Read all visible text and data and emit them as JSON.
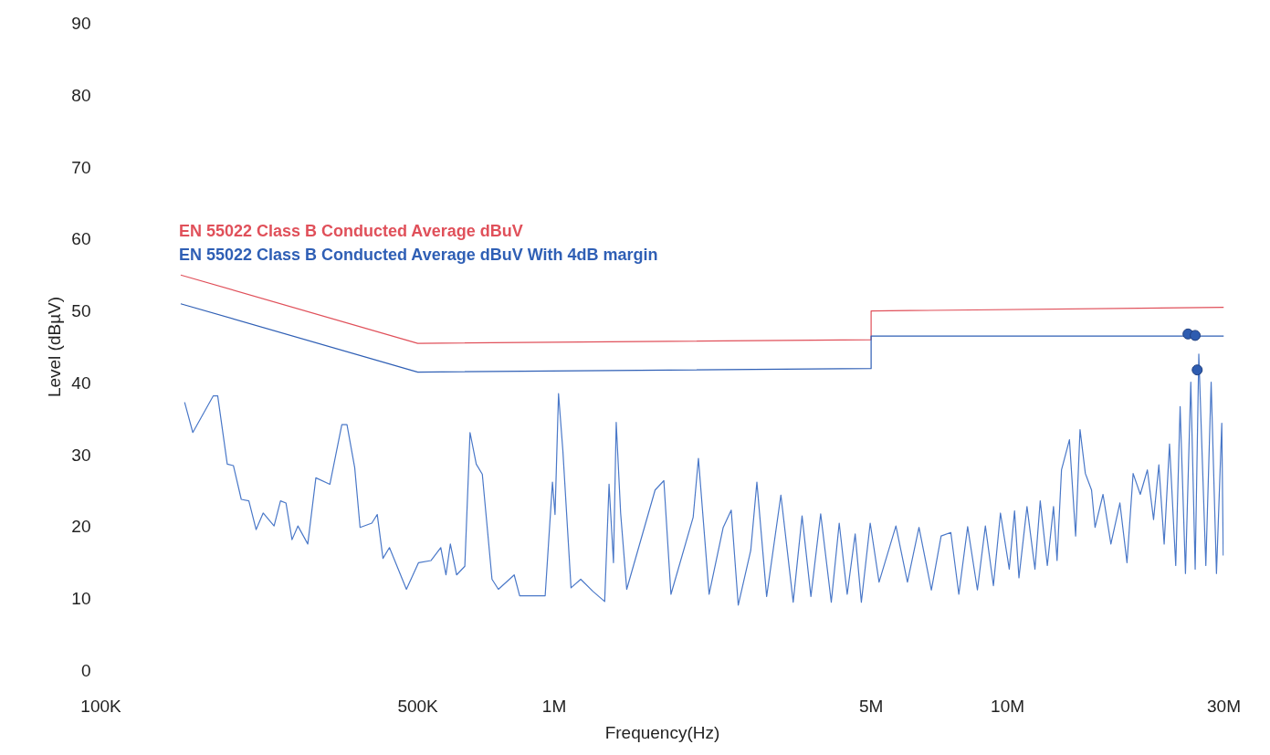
{
  "chart_data": {
    "type": "line",
    "xlabel": "Frequency(Hz)",
    "ylabel": "Level (dBµV)",
    "log": "x",
    "grid": false,
    "xlim": [
      100000,
      30000000
    ],
    "ylim": [
      0,
      90
    ],
    "xticks": [
      {
        "value": 100000,
        "label": "100K"
      },
      {
        "value": 500000,
        "label": "500K"
      },
      {
        "value": 1000000,
        "label": "1M"
      },
      {
        "value": 5000000,
        "label": "5M"
      },
      {
        "value": 10000000,
        "label": "10M"
      },
      {
        "value": 30000000,
        "label": "30M"
      }
    ],
    "yticks": [
      0,
      10,
      20,
      30,
      40,
      50,
      60,
      70,
      80,
      90
    ],
    "series": [
      {
        "color": "#4a78c8",
        "x": [
          153000,
          159500,
          177000,
          181000,
          190000,
          196000,
          204000,
          212000,
          220000,
          228000,
          241000,
          249000,
          256000,
          264000,
          272000,
          286000,
          298000,
          320000,
          340000,
          349000,
          363000,
          373000,
          396000,
          407000,
          419000,
          433000,
          472000,
          502000,
          535000,
          562000,
          577000,
          590000,
          609000,
          635000,
          652000,
          673000,
          694000,
          729000,
          753000,
          816000,
          839000,
          955000,
          991000,
          1004000,
          1022000,
          1045000,
          1089000,
          1144000,
          1218000,
          1292000,
          1321000,
          1351000,
          1370000,
          1401000,
          1445000,
          1669000,
          1745000,
          1809000,
          2025000,
          2080000,
          2196000,
          2359000,
          2457000,
          2546000,
          2713000,
          2799000,
          2941000,
          3162000,
          3366000,
          3521000,
          3683000,
          3870000,
          4084000,
          4252000,
          4428000,
          4611000,
          4758000,
          4977000,
          5206000,
          5671000,
          6013000,
          6376000,
          6790000,
          7135000,
          7496000,
          7806000,
          8164000,
          8579000,
          8933000,
          9306000,
          9644000,
          10085000,
          10360000,
          10594000,
          11036000,
          11491000,
          11803000,
          12237000,
          12627000,
          12856000,
          13150000,
          13692000,
          14128000,
          14448000,
          14843000,
          15318000,
          15594000,
          16237000,
          16900000,
          17690000,
          18340000,
          18920000,
          19620000,
          20340000,
          20990000,
          21560000,
          22150000,
          22760000,
          23490000,
          24020000,
          24680000,
          25360000,
          25930000,
          26410000,
          27370000,
          28120000,
          28890000,
          29680000,
          29900000
        ],
        "values": [
          37.3,
          33.1,
          38.2,
          38.2,
          28.7,
          28.5,
          23.8,
          23.6,
          19.6,
          21.9,
          20.1,
          23.6,
          23.3,
          18.2,
          20.1,
          17.6,
          26.8,
          25.9,
          34.2,
          34.2,
          28.2,
          19.9,
          20.5,
          21.7,
          15.6,
          17.1,
          11.3,
          15.0,
          15.3,
          17.1,
          13.3,
          17.6,
          13.3,
          14.5,
          33.1,
          28.7,
          27.3,
          12.7,
          11.3,
          13.3,
          10.4,
          10.4,
          26.2,
          21.7,
          38.5,
          30.5,
          11.5,
          12.7,
          11.0,
          9.6,
          25.9,
          15.0,
          34.5,
          21.9,
          11.3,
          25.1,
          26.4,
          10.6,
          21.3,
          29.5,
          10.6,
          19.9,
          22.3,
          9.1,
          16.7,
          26.2,
          10.3,
          24.4,
          9.5,
          21.5,
          10.3,
          21.8,
          9.5,
          20.5,
          10.6,
          19.0,
          9.5,
          20.5,
          12.3,
          20.1,
          12.3,
          19.9,
          11.2,
          18.7,
          19.2,
          10.6,
          20.0,
          11.2,
          20.1,
          11.8,
          21.9,
          14.1,
          22.2,
          12.9,
          22.8,
          14.1,
          23.6,
          14.6,
          22.8,
          15.3,
          27.9,
          32.1,
          18.7,
          33.5,
          27.4,
          25.1,
          19.9,
          24.5,
          17.6,
          23.3,
          15.0,
          27.4,
          24.5,
          27.9,
          21.0,
          28.6,
          17.6,
          31.5,
          14.6,
          36.7,
          13.5,
          40.1,
          14.1,
          44.0,
          14.6,
          40.1,
          13.5,
          34.4,
          16.0
        ]
      },
      {
        "name": "EN 55022 Class B Conducted Average dBuV",
        "color": "#e0505a",
        "x": [
          150000,
          500000,
          5000000,
          5000000,
          30000000
        ],
        "values": [
          55,
          45.5,
          46,
          50,
          50.5
        ]
      },
      {
        "name": "EN 55022 Class B Conducted Average dBuV With 4dB margin",
        "color": "#2f5fb5",
        "x": [
          150000,
          500000,
          5000000,
          5000000,
          30000000
        ],
        "values": [
          51,
          41.5,
          42,
          46.5,
          46.5
        ]
      },
      {
        "type": "scatter",
        "marker": "circle",
        "color": "#2e5cb0",
        "x": [
          25000000,
          25930000,
          26200000
        ],
        "values": [
          46.8,
          46.6,
          41.8
        ]
      }
    ]
  }
}
